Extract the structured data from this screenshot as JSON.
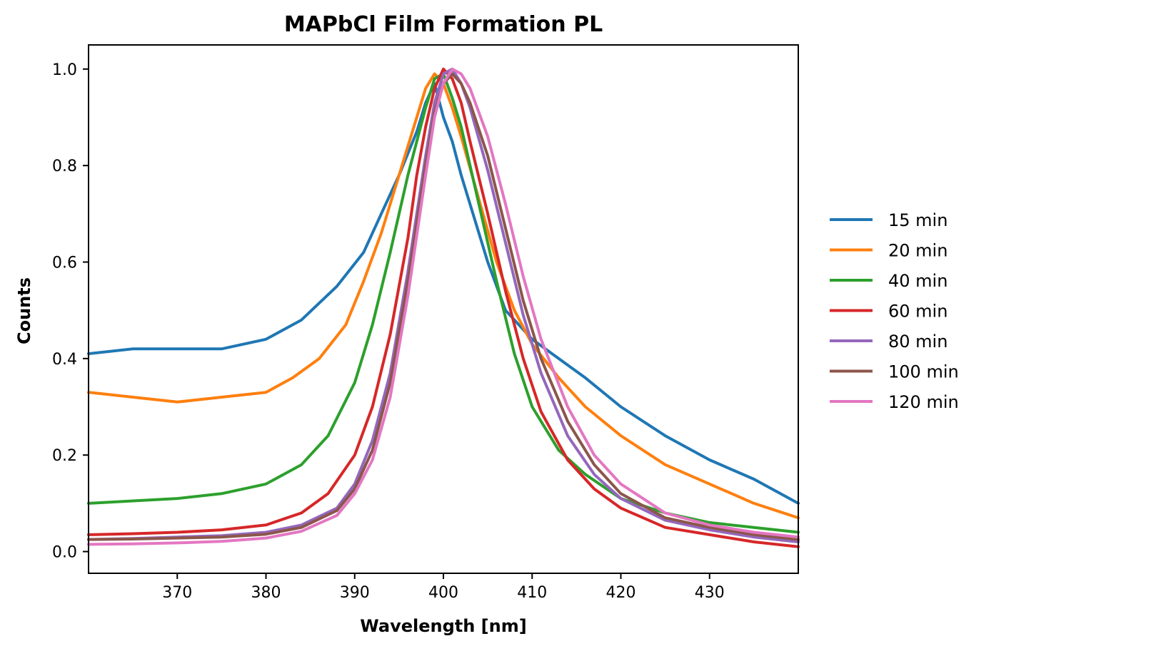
{
  "chart_data": {
    "type": "line",
    "title": "MAPbCl Film Formation PL",
    "xlabel": "Wavelength [nm]",
    "ylabel": "Counts",
    "xlim": [
      360,
      440
    ],
    "ylim": [
      -0.045,
      1.05
    ],
    "xticks": [
      "370",
      "380",
      "390",
      "400",
      "410",
      "420",
      "430"
    ],
    "yticks": [
      "0.0",
      "0.2",
      "0.4",
      "0.6",
      "0.8",
      "1.0"
    ],
    "grid": false,
    "legend_position": "right",
    "series": [
      {
        "name": "15 min",
        "color": "#1f77b4",
        "x": [
          360,
          365,
          370,
          375,
          380,
          384,
          388,
          391,
          393,
          395,
          397,
          398,
          399,
          400,
          401,
          402,
          403,
          405,
          407,
          410,
          413,
          416,
          420,
          425,
          430,
          435,
          440
        ],
        "y": [
          0.41,
          0.42,
          0.42,
          0.42,
          0.44,
          0.48,
          0.55,
          0.62,
          0.7,
          0.78,
          0.87,
          0.93,
          0.97,
          0.9,
          0.85,
          0.78,
          0.72,
          0.6,
          0.5,
          0.44,
          0.4,
          0.36,
          0.3,
          0.24,
          0.19,
          0.15,
          0.1
        ]
      },
      {
        "name": "20 min",
        "color": "#ff7f0e",
        "x": [
          360,
          365,
          370,
          375,
          380,
          383,
          386,
          389,
          391,
          393,
          395,
          397,
          398,
          399,
          400,
          401,
          402,
          404,
          406,
          408,
          410,
          413,
          416,
          420,
          425,
          430,
          435,
          440
        ],
        "y": [
          0.33,
          0.32,
          0.31,
          0.32,
          0.33,
          0.36,
          0.4,
          0.47,
          0.56,
          0.66,
          0.78,
          0.9,
          0.96,
          0.99,
          0.97,
          0.92,
          0.86,
          0.73,
          0.6,
          0.5,
          0.43,
          0.36,
          0.3,
          0.24,
          0.18,
          0.14,
          0.1,
          0.07
        ]
      },
      {
        "name": "40 min",
        "color": "#2ca02c",
        "x": [
          360,
          365,
          370,
          375,
          380,
          384,
          387,
          390,
          392,
          394,
          396,
          398,
          399,
          400,
          401,
          402,
          404,
          406,
          408,
          410,
          413,
          416,
          420,
          425,
          430,
          435,
          440
        ],
        "y": [
          0.1,
          0.105,
          0.11,
          0.12,
          0.14,
          0.18,
          0.24,
          0.35,
          0.47,
          0.62,
          0.78,
          0.92,
          0.98,
          0.99,
          0.94,
          0.88,
          0.72,
          0.56,
          0.41,
          0.3,
          0.21,
          0.16,
          0.11,
          0.08,
          0.06,
          0.05,
          0.04
        ]
      },
      {
        "name": "60 min",
        "color": "#d62728",
        "x": [
          360,
          365,
          370,
          375,
          380,
          384,
          387,
          390,
          392,
          394,
          396,
          397,
          398,
          399,
          400,
          401,
          402,
          403,
          405,
          407,
          409,
          411,
          414,
          417,
          420,
          425,
          430,
          435,
          440
        ],
        "y": [
          0.035,
          0.037,
          0.04,
          0.045,
          0.055,
          0.08,
          0.12,
          0.2,
          0.3,
          0.45,
          0.65,
          0.78,
          0.88,
          0.96,
          1.0,
          0.98,
          0.93,
          0.85,
          0.7,
          0.54,
          0.4,
          0.29,
          0.19,
          0.13,
          0.09,
          0.05,
          0.035,
          0.02,
          0.01
        ]
      },
      {
        "name": "80 min",
        "color": "#9467bd",
        "x": [
          360,
          365,
          370,
          375,
          380,
          384,
          388,
          390,
          392,
          394,
          396,
          398,
          399,
          400,
          401,
          402,
          403,
          405,
          407,
          409,
          411,
          414,
          417,
          420,
          425,
          430,
          435,
          440
        ],
        "y": [
          0.025,
          0.027,
          0.03,
          0.033,
          0.04,
          0.055,
          0.09,
          0.14,
          0.23,
          0.37,
          0.58,
          0.82,
          0.93,
          0.99,
          1.0,
          0.97,
          0.92,
          0.79,
          0.64,
          0.49,
          0.37,
          0.24,
          0.16,
          0.11,
          0.065,
          0.045,
          0.03,
          0.02
        ]
      },
      {
        "name": "100 min",
        "color": "#8c564b",
        "x": [
          360,
          365,
          370,
          375,
          380,
          384,
          388,
          390,
          392,
          394,
          396,
          398,
          399,
          400,
          401,
          402,
          403,
          405,
          407,
          409,
          411,
          414,
          417,
          420,
          425,
          430,
          435,
          440
        ],
        "y": [
          0.025,
          0.026,
          0.028,
          0.03,
          0.036,
          0.05,
          0.085,
          0.13,
          0.21,
          0.35,
          0.56,
          0.8,
          0.91,
          0.97,
          0.99,
          0.97,
          0.93,
          0.82,
          0.67,
          0.52,
          0.4,
          0.27,
          0.18,
          0.12,
          0.07,
          0.05,
          0.035,
          0.025
        ]
      },
      {
        "name": "120 min",
        "color": "#e377c2",
        "x": [
          360,
          365,
          370,
          375,
          380,
          384,
          388,
          390,
          392,
          394,
          396,
          398,
          399,
          400,
          401,
          402,
          403,
          405,
          407,
          409,
          411,
          414,
          417,
          420,
          425,
          430,
          435,
          440
        ],
        "y": [
          0.015,
          0.016,
          0.018,
          0.021,
          0.028,
          0.042,
          0.075,
          0.12,
          0.19,
          0.32,
          0.53,
          0.78,
          0.9,
          0.97,
          1.0,
          0.99,
          0.96,
          0.86,
          0.72,
          0.57,
          0.44,
          0.3,
          0.2,
          0.14,
          0.08,
          0.055,
          0.04,
          0.03
        ]
      }
    ]
  }
}
